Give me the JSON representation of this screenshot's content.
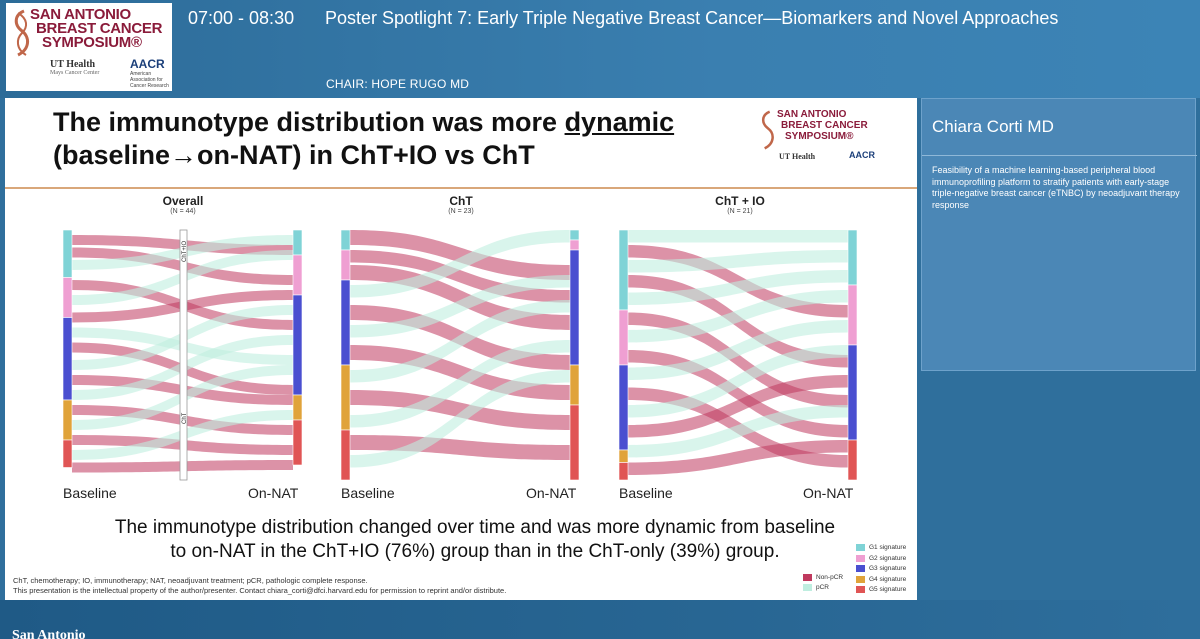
{
  "header": {
    "logo": {
      "line1": "SAN ANTONIO",
      "line2": "BREAST CANCER",
      "line3": "SYMPOSIUM®",
      "ut_health": "UT Health",
      "ut_sub": "Mays Cancer Center",
      "aacr": "AACR",
      "aacr_sub": "American Association for Cancer Research"
    },
    "time": "07:00 - 08:30",
    "session_title": "Poster Spotlight 7: Early Triple Negative Breast Cancer—Biomarkers and Novel Approaches",
    "chair": "CHAIR: HOPE RUGO MD"
  },
  "slide": {
    "title_part1": "The immunotype distribution was more ",
    "title_underlined": "dynamic",
    "title_line2": "(baseline→on-NAT) in ChT+IO vs ChT",
    "summary_line1": "The immunotype distribution changed over time and was more dynamic from baseline",
    "summary_line2": "to on-NAT in the ChT+IO (76%) group than in the ChT-only (39%) group.",
    "footnote1": "ChT, chemotherapy; IO, immunotherapy; NAT, neoadjuvant treatment; pCR, pathologic complete response.",
    "footnote2": "This presentation is the intellectual property of the author/presenter. Contact chiara_corti@dfci.harvard.edu for permission to reprint and/or distribute."
  },
  "chart_data": [
    {
      "type": "sankey",
      "title": "Overall",
      "n_label": "(N = 44)",
      "axes": [
        "Baseline",
        "On-NAT"
      ],
      "middle_axis_labels": [
        "ChT+IO",
        "ChT"
      ]
    },
    {
      "type": "sankey",
      "title": "ChT",
      "n_label": "(N = 23)",
      "axes": [
        "Baseline",
        "On-NAT"
      ]
    },
    {
      "type": "sankey",
      "title": "ChT + IO",
      "n_label": "(N = 21)",
      "axes": [
        "Baseline",
        "On-NAT"
      ]
    }
  ],
  "legend": {
    "response": [
      {
        "label": "Non-pCR",
        "color": "#c0395e"
      },
      {
        "label": "pCR",
        "color": "#bfeee0"
      }
    ],
    "signatures": [
      {
        "label": "G1 signature",
        "color": "#7fd3d6"
      },
      {
        "label": "G2 signature",
        "color": "#ef9fd2"
      },
      {
        "label": "G3 signature",
        "color": "#4a4fd0"
      },
      {
        "label": "G4 signature",
        "color": "#e0a33a"
      },
      {
        "label": "G5 signature",
        "color": "#e05555"
      }
    ]
  },
  "side": {
    "speaker": "Chiara Corti MD",
    "abstract": "Feasibility of a machine learning-based peripheral blood immunoprofiling platform to stratify patients with early-stage triple-negative breast cancer (eTNBC) by neoadjuvant therapy response"
  },
  "footer": {
    "brand": "San Antonio"
  }
}
